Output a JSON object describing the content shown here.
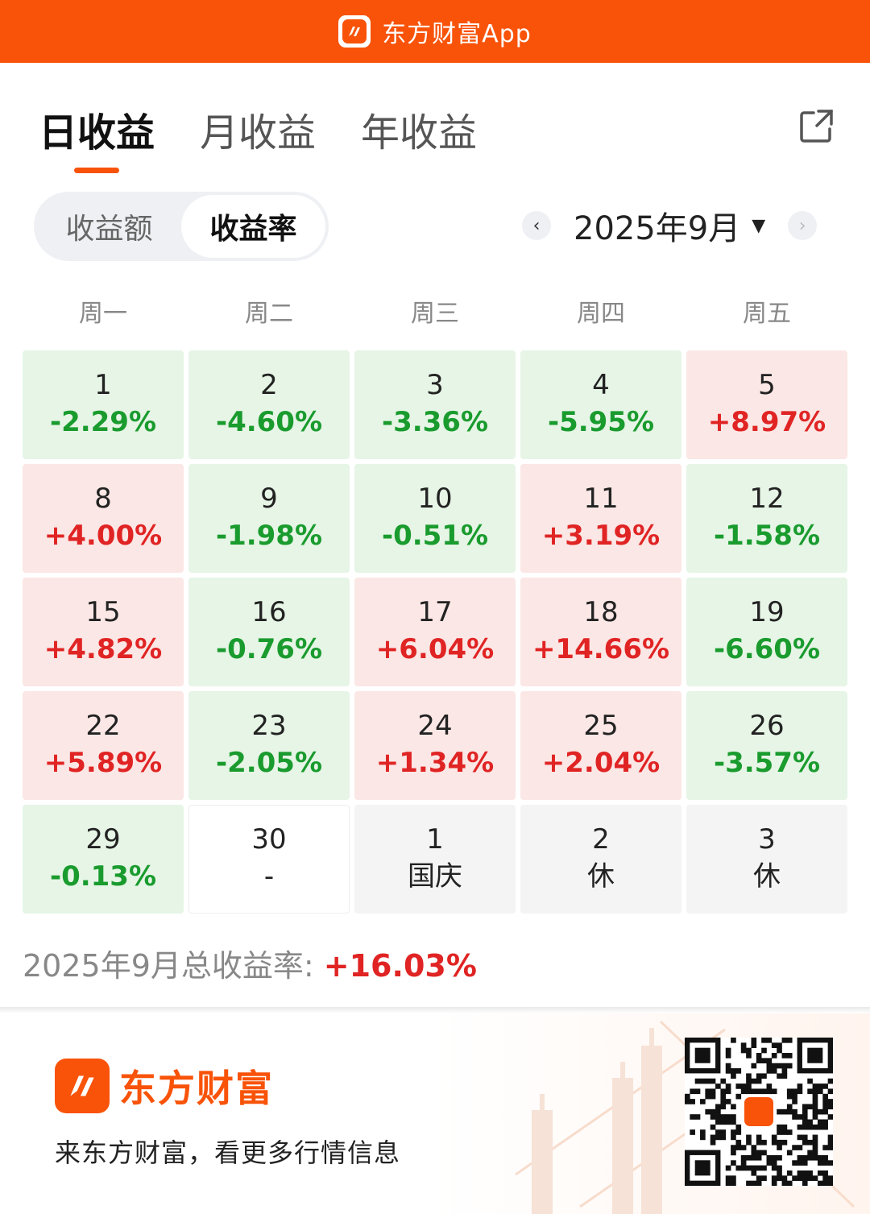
{
  "app": {
    "title": "东方财富App",
    "brand_color": "#f85309"
  },
  "tabs": [
    {
      "label": "日收益",
      "active": true
    },
    {
      "label": "月收益",
      "active": false
    },
    {
      "label": "年收益",
      "active": false
    }
  ],
  "segment": {
    "amount_label": "收益额",
    "rate_label": "收益率",
    "selected": "收益率"
  },
  "month_picker": {
    "label": "2025年9月",
    "prev": "‹",
    "next": "›",
    "caret": "▼"
  },
  "weekdays": [
    "周一",
    "周二",
    "周三",
    "周四",
    "周五"
  ],
  "calendar": [
    {
      "day": "1",
      "value": "-2.29%",
      "status": "down"
    },
    {
      "day": "2",
      "value": "-4.60%",
      "status": "down"
    },
    {
      "day": "3",
      "value": "-3.36%",
      "status": "down"
    },
    {
      "day": "4",
      "value": "-5.95%",
      "status": "down"
    },
    {
      "day": "5",
      "value": "+8.97%",
      "status": "up"
    },
    {
      "day": "8",
      "value": "+4.00%",
      "status": "up"
    },
    {
      "day": "9",
      "value": "-1.98%",
      "status": "down"
    },
    {
      "day": "10",
      "value": "-0.51%",
      "status": "down"
    },
    {
      "day": "11",
      "value": "+3.19%",
      "status": "up"
    },
    {
      "day": "12",
      "value": "-1.58%",
      "status": "down"
    },
    {
      "day": "15",
      "value": "+4.82%",
      "status": "up"
    },
    {
      "day": "16",
      "value": "-0.76%",
      "status": "down"
    },
    {
      "day": "17",
      "value": "+6.04%",
      "status": "up"
    },
    {
      "day": "18",
      "value": "+14.66%",
      "status": "up"
    },
    {
      "day": "19",
      "value": "-6.60%",
      "status": "down"
    },
    {
      "day": "22",
      "value": "+5.89%",
      "status": "up"
    },
    {
      "day": "23",
      "value": "-2.05%",
      "status": "down"
    },
    {
      "day": "24",
      "value": "+1.34%",
      "status": "up"
    },
    {
      "day": "25",
      "value": "+2.04%",
      "status": "up"
    },
    {
      "day": "26",
      "value": "-3.57%",
      "status": "down"
    },
    {
      "day": "29",
      "value": "-0.13%",
      "status": "down"
    },
    {
      "day": "30",
      "value": "-",
      "status": "none"
    },
    {
      "day": "1",
      "value": "国庆",
      "status": "holiday"
    },
    {
      "day": "2",
      "value": "休",
      "status": "holiday"
    },
    {
      "day": "3",
      "value": "休",
      "status": "holiday"
    }
  ],
  "summary": {
    "label": "2025年9月总收益率: ",
    "value": "+16.03%"
  },
  "footer": {
    "brand": "东方财富",
    "slogan": "来东方财富，看更多行情信息"
  },
  "colors": {
    "up": "#e02424",
    "down": "#1a9b2e",
    "up_bg": "#fbe7e5",
    "down_bg": "#e6f5e6"
  },
  "icons": {
    "share": "share-icon",
    "logo": "eastmoney-logo-icon",
    "qr": "qr-code"
  }
}
